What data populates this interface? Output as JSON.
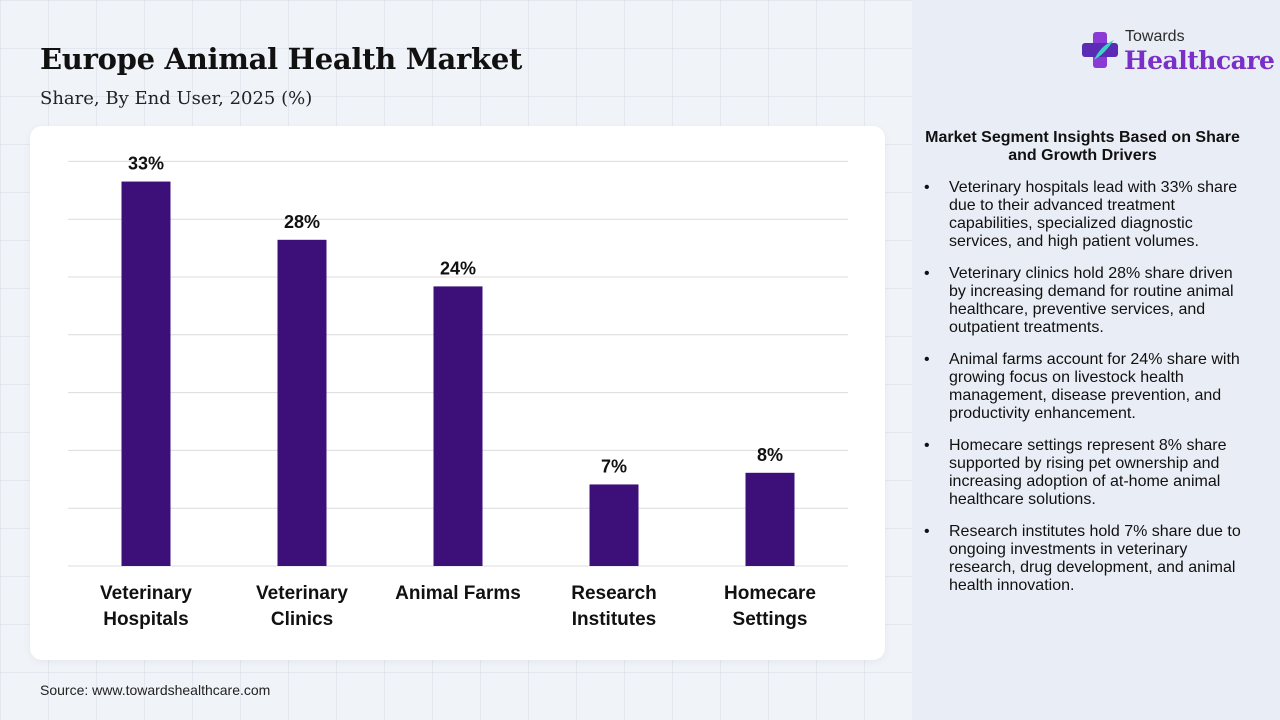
{
  "header": {
    "title": "Europe Animal Health Market",
    "subtitle": "Share, By End User, 2025 (%)"
  },
  "logo": {
    "top": "Towards",
    "main": "Healthcare"
  },
  "source": "Source: www.towardshealthcare.com",
  "insights": {
    "title": "Market Segment Insights Based on Share and Growth Drivers",
    "items": [
      "Veterinary hospitals lead with 33% share due to their advanced treatment capabilities, specialized diagnostic services, and high patient volumes.",
      "Veterinary clinics hold 28% share driven by increasing demand for routine animal healthcare, preventive services, and outpatient treatments.",
      "Animal farms account for 24% share with growing focus on livestock health management, disease prevention, and productivity enhancement.",
      "Homecare settings represent 8% share supported by rising pet ownership and increasing adoption of at-home animal healthcare solutions.",
      "Research institutes hold 7% share due to ongoing investments in veterinary research, drug development, and animal health innovation."
    ]
  },
  "chart_data": {
    "type": "bar",
    "title": "Europe Animal Health Market",
    "subtitle": "Share, By End User, 2025 (%)",
    "categories": [
      [
        "Veterinary",
        "Hospitals"
      ],
      [
        "Veterinary",
        "Clinics"
      ],
      [
        "Animal Farms"
      ],
      [
        "Research",
        "Institutes"
      ],
      [
        "Homecare",
        "Settings"
      ]
    ],
    "values": [
      33,
      28,
      24,
      7,
      8
    ],
    "data_labels": [
      "33%",
      "28%",
      "24%",
      "7%",
      "8%"
    ],
    "ylim": [
      0,
      35
    ],
    "grid": true,
    "legend": "none",
    "colors": {
      "bar": "#3d0f78",
      "grid": "#dcdcdc"
    }
  }
}
